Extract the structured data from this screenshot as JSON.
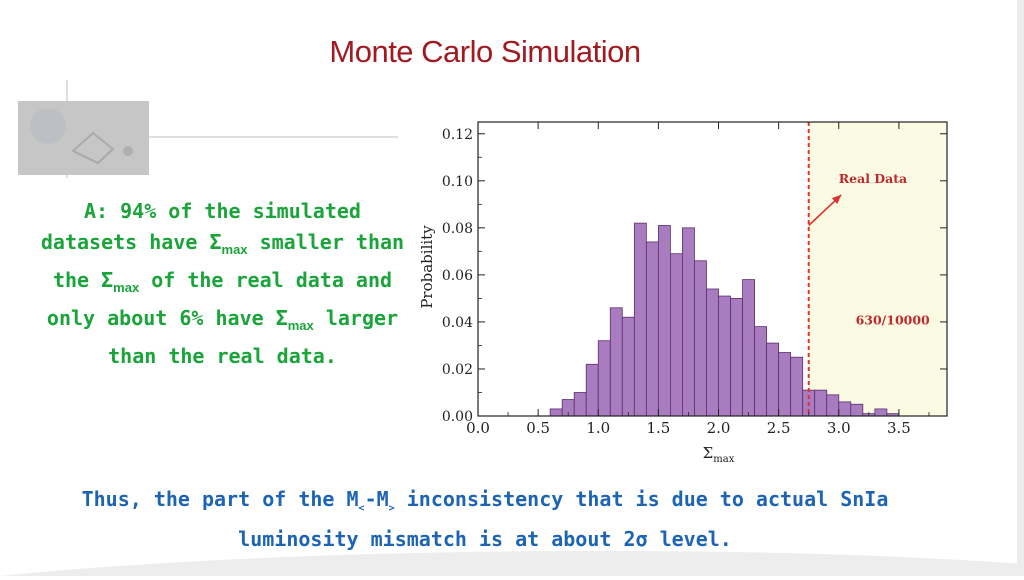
{
  "slide": {
    "title": "Monte Carlo Simulation",
    "left_text": {
      "p1": "A: 94% of the simulated datasets have Σ",
      "sub1": "max",
      "p2": " smaller than the Σ",
      "sub2": "max",
      "p3": " of the real data and only about 6% have Σ",
      "sub3": "max",
      "p4": " larger than the real data."
    },
    "bottom_text": {
      "p1": "Thus, the part of the M",
      "sub1": "<",
      "p2": "-M",
      "sub2": ">",
      "p3": " inconsistency that is due to actual SnIa luminosity mismatch is at about 2σ level."
    },
    "colors": {
      "title": "#a01a1f",
      "left_text": "#1aa43a",
      "bottom_text": "#1e64b4"
    }
  },
  "chart_data": {
    "type": "bar",
    "ylabel": "Probability",
    "xlabel": "Σ",
    "xlabel_sub": "max",
    "xlim": [
      0.0,
      3.9
    ],
    "ylim": [
      0.0,
      0.125
    ],
    "xticks": [
      "0.0",
      "0.5",
      "1.0",
      "1.5",
      "2.0",
      "2.5",
      "3.0",
      "3.5"
    ],
    "xtick_values": [
      0.0,
      0.5,
      1.0,
      1.5,
      2.0,
      2.5,
      3.0,
      3.5
    ],
    "yticks": [
      "0.00",
      "0.02",
      "0.04",
      "0.06",
      "0.08",
      "0.10",
      "0.12"
    ],
    "ytick_values": [
      0.0,
      0.02,
      0.04,
      0.06,
      0.08,
      0.1,
      0.12
    ],
    "bin_width": 0.1,
    "bins_start": [
      0.6,
      0.7,
      0.8,
      0.9,
      1.0,
      1.1,
      1.2,
      1.3,
      1.4,
      1.5,
      1.6,
      1.7,
      1.8,
      1.9,
      2.0,
      2.1,
      2.2,
      2.3,
      2.4,
      2.5,
      2.6,
      2.7,
      2.8,
      2.9,
      3.0,
      3.1,
      3.2,
      3.3,
      3.4
    ],
    "values": [
      0.003,
      0.007,
      0.01,
      0.022,
      0.032,
      0.046,
      0.042,
      0.082,
      0.074,
      0.081,
      0.069,
      0.08,
      0.066,
      0.054,
      0.051,
      0.05,
      0.058,
      0.038,
      0.031,
      0.027,
      0.025,
      0.011,
      0.011,
      0.009,
      0.006,
      0.005,
      0.001,
      0.003,
      0.001
    ],
    "threshold": 2.75,
    "annotations": {
      "real_data": "Real Data",
      "fraction": "630/10000"
    },
    "colors": {
      "bar_fill": "#a97cc0",
      "bar_stroke": "#5a2e70",
      "shade": "#fafbe2",
      "threshold_line": "#e03030"
    }
  }
}
